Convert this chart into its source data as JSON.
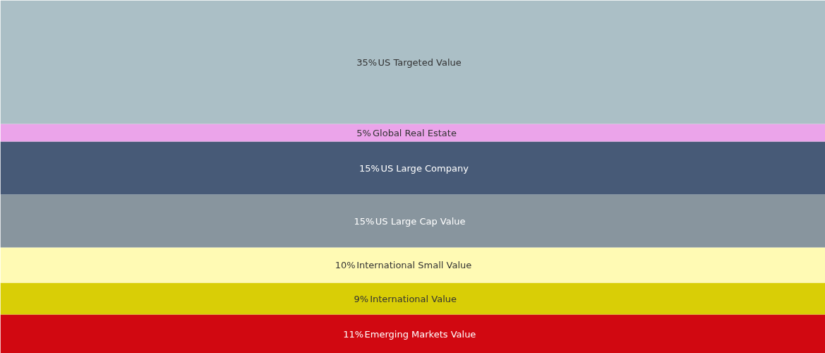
{
  "chart_data": {
    "type": "bar",
    "stacked": true,
    "data_labels": true,
    "categories": [
      null
    ],
    "tick_labels": false,
    "grid": false,
    "series": [
      {
        "name": "Emerging Markets Value",
        "color": "#d10811",
        "values": [
          11
        ],
        "value_labels": [
          "11%"
        ]
      },
      {
        "name": "International Value",
        "color": "#d9ce06",
        "values": [
          9
        ],
        "value_labels": [
          "9%"
        ]
      },
      {
        "name": "International Small Value",
        "color": "#fffab4",
        "values": [
          10
        ],
        "value_labels": [
          "10%"
        ]
      },
      {
        "name": "US Large Cap Value",
        "color": "#88959e",
        "values": [
          15
        ],
        "value_labels": [
          "15%"
        ]
      },
      {
        "name": "US Large Company",
        "color": "#475a77",
        "values": [
          15
        ],
        "value_labels": [
          "15%"
        ]
      },
      {
        "name": "Global Real Estate",
        "color": "#eba4ea",
        "values": [
          5
        ],
        "value_labels": [
          "5%"
        ]
      },
      {
        "name": "US Targeted Value",
        "color": "#abbfc6",
        "values": [
          35
        ],
        "value_labels": [
          "35%"
        ]
      }
    ]
  }
}
